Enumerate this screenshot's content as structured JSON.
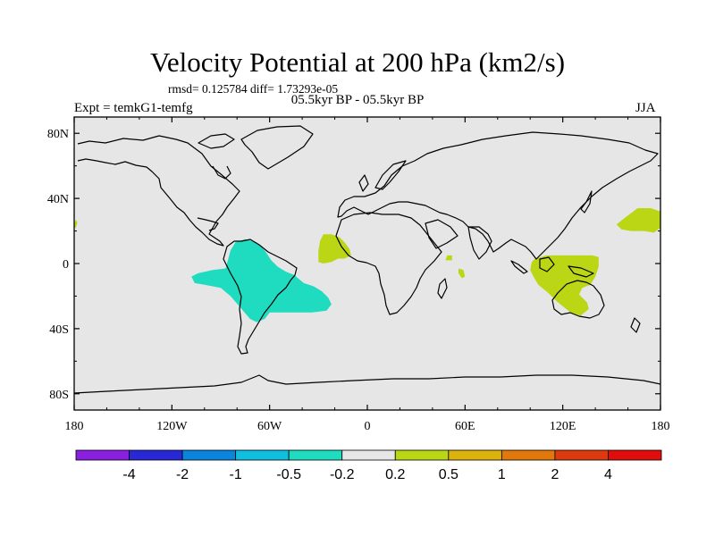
{
  "header": {
    "title": "Velocity Potential at 200 hPa (km2/s)",
    "stats": "rmsd= 0.125784 diff= 1.73293e-05",
    "experiment": "Expt = temkG1-temfg",
    "subtitle": "05.5kyr BP - 05.5kyr BP",
    "season": "JJA"
  },
  "chart_data": {
    "type": "heatmap",
    "title": "Velocity Potential at 200 hPa (km2/s)",
    "projection": "cylindrical-equidistant",
    "xlim": [
      -180,
      180
    ],
    "ylim": [
      -90,
      90
    ],
    "x_ticks": [
      {
        "value": -180,
        "label": "180"
      },
      {
        "value": -120,
        "label": "120W"
      },
      {
        "value": -60,
        "label": "60W"
      },
      {
        "value": 0,
        "label": "0"
      },
      {
        "value": 60,
        "label": "60E"
      },
      {
        "value": 120,
        "label": "120E"
      },
      {
        "value": 180,
        "label": "180"
      }
    ],
    "y_ticks": [
      {
        "value": 80,
        "label": "80N"
      },
      {
        "value": 40,
        "label": "40N"
      },
      {
        "value": 0,
        "label": "0"
      },
      {
        "value": -40,
        "label": "40S"
      },
      {
        "value": -80,
        "label": "80S"
      }
    ],
    "colorbar": {
      "levels": [
        "-4",
        "-2",
        "-1",
        "-0.5",
        "-0.2",
        "0.2",
        "0.5",
        "1",
        "2",
        "4"
      ],
      "colors": [
        "#8a1fe0",
        "#2828d6",
        "#0b84dc",
        "#10bfe0",
        "#1fdcc0",
        "#e6e6e6",
        "#bbd615",
        "#dcb20c",
        "#e0780b",
        "#dd3a10",
        "#e00d0d"
      ]
    },
    "regions": [
      {
        "name": "south-america-negative",
        "level_range": "-0.5 to -0.2",
        "color": "#1fdcc0",
        "polygon": [
          [
            -108,
            -8
          ],
          [
            -104,
            -6
          ],
          [
            -95,
            -4
          ],
          [
            -87,
            -3
          ],
          [
            -84,
            8
          ],
          [
            -81,
            13
          ],
          [
            -75,
            15
          ],
          [
            -68,
            13
          ],
          [
            -63,
            8
          ],
          [
            -59,
            2
          ],
          [
            -55,
            -2
          ],
          [
            -50,
            -5
          ],
          [
            -45,
            -7
          ],
          [
            -39,
            -12
          ],
          [
            -33,
            -14
          ],
          [
            -28,
            -17
          ],
          [
            -24,
            -21
          ],
          [
            -22,
            -25
          ],
          [
            -25,
            -29
          ],
          [
            -34,
            -30
          ],
          [
            -47,
            -30
          ],
          [
            -55,
            -30
          ],
          [
            -60,
            -30
          ],
          [
            -63,
            -34
          ],
          [
            -68,
            -36
          ],
          [
            -72,
            -34
          ],
          [
            -78,
            -27
          ],
          [
            -84,
            -20
          ],
          [
            -90,
            -15
          ],
          [
            -100,
            -13
          ],
          [
            -106,
            -12
          ]
        ]
      },
      {
        "name": "west-africa-positive",
        "level_range": "0.2 to 0.5",
        "color": "#bbd615",
        "polygon": [
          [
            -30,
            1
          ],
          [
            -30,
            8
          ],
          [
            -29,
            14
          ],
          [
            -27,
            18
          ],
          [
            -22,
            18
          ],
          [
            -17,
            16
          ],
          [
            -14,
            13
          ],
          [
            -11,
            9
          ],
          [
            -10,
            5
          ],
          [
            -14,
            3
          ],
          [
            -18,
            3
          ],
          [
            -22,
            1
          ],
          [
            -27,
            0
          ]
        ]
      },
      {
        "name": "indian-ocean-east-africa-positive",
        "level_range": "0.2 to 0.5",
        "color": "#bbd615",
        "polygon": [
          [
            48,
            2
          ],
          [
            49,
            5
          ],
          [
            52,
            5
          ],
          [
            52,
            2
          ]
        ]
      },
      {
        "name": "indian-ocean-south-positive",
        "level_range": "0.2 to 0.5",
        "color": "#bbd615",
        "polygon": [
          [
            56,
            -3
          ],
          [
            56,
            -6
          ],
          [
            58,
            -9
          ],
          [
            60,
            -8
          ],
          [
            59,
            -4
          ]
        ]
      },
      {
        "name": "maritime-continent-positive",
        "level_range": "0.2 to 0.5",
        "color": "#bbd615",
        "polygon": [
          [
            101,
            1
          ],
          [
            103,
            3
          ],
          [
            110,
            5
          ],
          [
            125,
            5
          ],
          [
            138,
            5
          ],
          [
            142,
            4
          ],
          [
            142,
            -2
          ],
          [
            140,
            -8
          ],
          [
            137,
            -13
          ],
          [
            132,
            -15
          ],
          [
            130,
            -19
          ],
          [
            135,
            -24
          ],
          [
            136,
            -28
          ],
          [
            131,
            -32
          ],
          [
            126,
            -31
          ],
          [
            121,
            -27
          ],
          [
            116,
            -23
          ],
          [
            111,
            -18
          ],
          [
            105,
            -13
          ],
          [
            102,
            -8
          ],
          [
            100,
            -4
          ]
        ]
      },
      {
        "name": "western-pacific-positive",
        "level_range": "0.2 to 0.5",
        "color": "#bbd615",
        "polygon": [
          [
            153,
            24
          ],
          [
            158,
            28
          ],
          [
            166,
            34
          ],
          [
            174,
            34
          ],
          [
            180,
            32
          ],
          [
            180,
            22
          ],
          [
            176,
            19
          ],
          [
            170,
            20
          ],
          [
            162,
            20
          ],
          [
            156,
            21
          ]
        ]
      },
      {
        "name": "date-line-west-positive",
        "level_range": "0.2 to 0.5",
        "color": "#bbd615",
        "polygon": [
          [
            -180,
            24
          ],
          [
            -179,
            27
          ],
          [
            -178,
            25
          ],
          [
            -179,
            22
          ],
          [
            -180,
            22
          ]
        ]
      }
    ]
  }
}
